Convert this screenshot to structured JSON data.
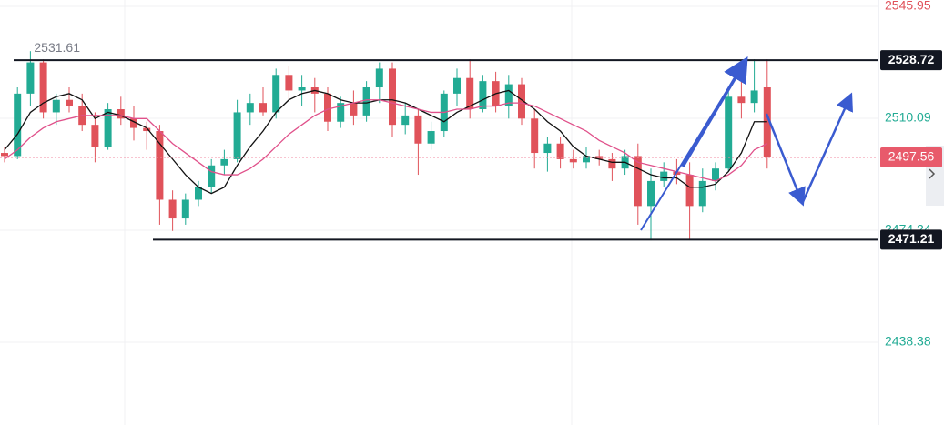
{
  "chart_data": {
    "type": "candlestick",
    "ylim": [
      2411.84,
      2547.99
    ],
    "yticks": [
      2545.95,
      2510.09,
      2474.24,
      2438.38
    ],
    "ytick_colors": [
      "#e0525a",
      "#22ab94",
      "#22ab94",
      "#22ab94"
    ],
    "grid": true,
    "up_color": "#22ab94",
    "down_color": "#e0525a",
    "open": [
      2499,
      2498,
      2518,
      2528,
      2512,
      2516,
      2514,
      2508,
      2501,
      2513,
      2510,
      2507,
      2506,
      2484,
      2478,
      2484,
      2488,
      2495,
      2497,
      2512,
      2515,
      2512,
      2524,
      2519,
      2520,
      2518,
      2509,
      2515,
      2511,
      2520,
      2526,
      2508,
      2511,
      2502,
      2506,
      2518,
      2523,
      2513,
      2522,
      2514,
      2521,
      2510,
      2499,
      2502,
      2497,
      2496,
      2498,
      2497,
      2494,
      2498,
      2482,
      2490,
      2493,
      2492,
      2482,
      2490,
      2494,
      2517,
      2515,
      2520
    ],
    "high": [
      2501,
      2520,
      2531.61,
      2529,
      2518,
      2520,
      2518,
      2512,
      2515,
      2517,
      2514,
      2509,
      2508,
      2487,
      2486,
      2490,
      2497,
      2500,
      2516,
      2518,
      2520,
      2526,
      2527,
      2524,
      2523,
      2520,
      2517,
      2519,
      2522,
      2528,
      2528,
      2515,
      2513,
      2509,
      2519,
      2526,
      2529,
      2524,
      2525,
      2524,
      2523,
      2513,
      2504,
      2504,
      2500,
      2501,
      2500,
      2499,
      2500,
      2502,
      2494,
      2496,
      2497,
      2496,
      2494,
      2496,
      2520,
      2524,
      2529,
      2529
    ],
    "low": [
      2496,
      2497,
      2514,
      2510,
      2508,
      2512,
      2506,
      2496,
      2500,
      2508,
      2503,
      2500,
      2476,
      2474,
      2476,
      2482,
      2486,
      2492,
      2496,
      2508,
      2511,
      2510,
      2516,
      2514,
      2512,
      2506,
      2507,
      2508,
      2509,
      2515,
      2504,
      2505,
      2492,
      2500,
      2504,
      2514,
      2510,
      2512,
      2512,
      2510,
      2508,
      2494,
      2493,
      2494,
      2494,
      2494,
      2495,
      2490,
      2492,
      2476,
      2471,
      2488,
      2489,
      2471,
      2480,
      2487,
      2493,
      2510,
      2512,
      2494
    ],
    "close": [
      2498,
      2518,
      2528,
      2512,
      2516,
      2514,
      2508,
      2501,
      2513,
      2510,
      2507,
      2506,
      2484,
      2478,
      2484,
      2488,
      2495,
      2497,
      2512,
      2515,
      2512,
      2524,
      2519,
      2520,
      2518,
      2509,
      2515,
      2511,
      2520,
      2526,
      2508,
      2511,
      2502,
      2506,
      2518,
      2523,
      2513,
      2522,
      2514,
      2521,
      2510,
      2499,
      2502,
      2497,
      2496,
      2498,
      2497,
      2494,
      2498,
      2482,
      2490,
      2493,
      2492,
      2482,
      2490,
      2494,
      2517,
      2515,
      2519,
      2497.56
    ],
    "lines": [
      {
        "color": "#111111",
        "values": [
          2500,
          2505,
          2512,
          2515,
          2517,
          2518,
          2516,
          2510,
          2512,
          2511,
          2509,
          2507,
          2502,
          2497,
          2492,
          2488,
          2486,
          2488,
          2495,
          2501,
          2506,
          2512,
          2516,
          2518,
          2519,
          2518,
          2516,
          2515,
          2515,
          2516,
          2516,
          2515,
          2513,
          2511,
          2509,
          2512,
          2514,
          2516,
          2518,
          2519,
          2516,
          2513,
          2509,
          2506,
          2501,
          2498,
          2497,
          2496,
          2496,
          2494,
          2492,
          2491,
          2491,
          2488,
          2488,
          2489,
          2493,
          2499,
          2509,
          2509
        ]
      },
      {
        "color": "#e0508a",
        "values": [
          2497,
          2500,
          2504,
          2507,
          2509,
          2510,
          2511,
          2511,
          2511,
          2511,
          2510,
          2510,
          2506,
          2502,
          2499,
          2496,
          2493,
          2492,
          2492,
          2494,
          2497,
          2501,
          2505,
          2508,
          2511,
          2513,
          2514,
          2515,
          2516,
          2516,
          2515,
          2514,
          2513,
          2512,
          2512,
          2513,
          2513,
          2514,
          2514,
          2515,
          2515,
          2514,
          2512,
          2510,
          2508,
          2506,
          2503,
          2501,
          2499,
          2496,
          2495,
          2494,
          2493,
          2492,
          2491,
          2490,
          2492,
          2495,
          2500,
          2502
        ]
      }
    ],
    "levels": [
      2528.72,
      2471.21
    ]
  }
}
